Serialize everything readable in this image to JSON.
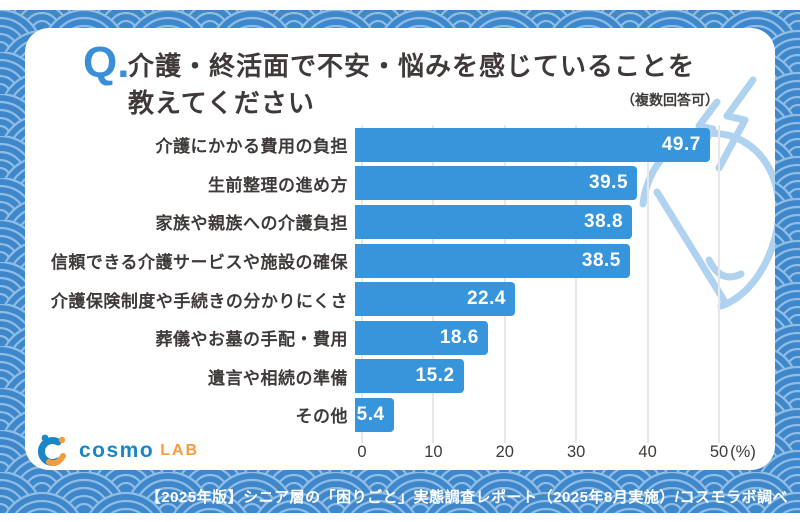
{
  "header": {
    "q_label": "Q.",
    "title_line1": "介護・終活面で不安・悩みを感じていることを",
    "title_line2": "教えてください",
    "note": "（複数回答可）"
  },
  "chart_data": {
    "type": "bar",
    "orientation": "horizontal",
    "title": "介護・終活面で不安・悩みを感じていることを教えてください",
    "note": "（複数回答可）",
    "categories": [
      "介護にかかる費用の負担",
      "生前整理の進め方",
      "家族や親族への介護負担",
      "信頼できる介護サービスや施設の確保",
      "介護保険制度や手続きの分かりにくさ",
      "葬儀やお墓の手配・費用",
      "遺言や相続の準備",
      "その他"
    ],
    "values": [
      49.7,
      39.5,
      38.8,
      38.5,
      22.4,
      18.6,
      15.2,
      5.4
    ],
    "xlim": [
      0,
      50
    ],
    "x_ticks": [
      0,
      10,
      20,
      30,
      40,
      50
    ],
    "x_unit": "(%)",
    "grid": true,
    "value_label_position": "inside-end",
    "legend": null
  },
  "logo": {
    "brand": "cosmo",
    "suffix": "LAB"
  },
  "footer": {
    "text": "【2025年版】シニア層の「困りごと」実態調査レポート（2025年8月実施）/コスモラボ調べ"
  },
  "theme": {
    "accent": "#3b8fd6",
    "text_dark": "#3f3a39",
    "bar": "#3795dc",
    "grid": "#e7e7e7",
    "pattern_bg": "#3e87ca",
    "pattern_ring": "#8fbde6",
    "decoration": "#aed2ef",
    "logo_blue": "#1a86c8",
    "logo_orange": "#f49c3f"
  }
}
